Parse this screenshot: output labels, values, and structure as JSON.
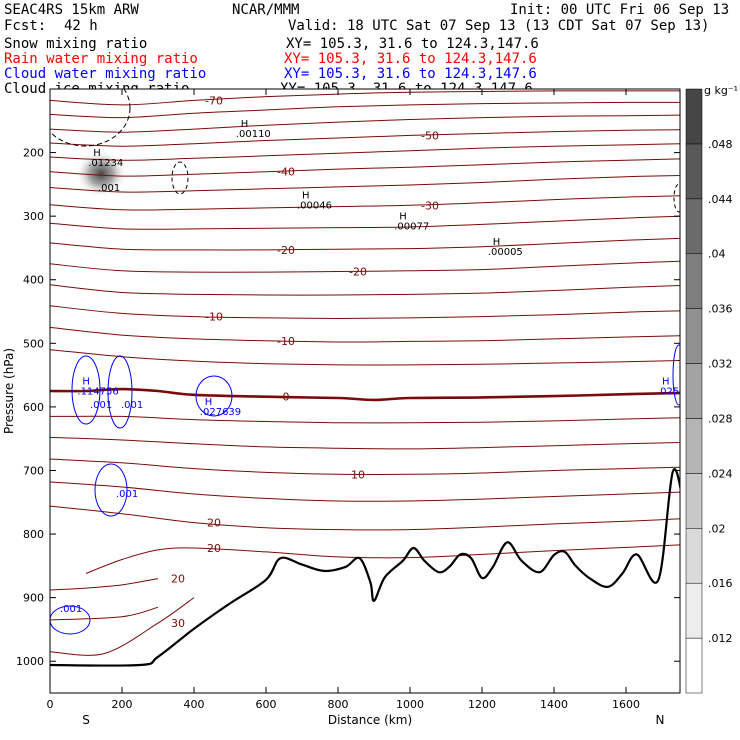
{
  "header": {
    "model": "SEAC4RS 15km ARW",
    "center": "NCAR/MMM",
    "init": "Init: 00 UTC Fri 06 Sep 13",
    "fcst_label": "Fcst:",
    "fcst_value": "42 h",
    "valid": "Valid: 18 UTC Sat 07 Sep 13 (13 CDT Sat 07 Sep 13)",
    "fields": [
      {
        "name": "Snow mixing ratio",
        "xy": "XY= 105.3, 31.6 to 124.3,147.6",
        "color": "#000000"
      },
      {
        "name": "Rain water mixing ratio",
        "xy": "XY= 105.3, 31.6 to 124.3,147.6",
        "color": "#ff0000"
      },
      {
        "name": "Cloud water mixing ratio",
        "xy": "XY= 105.3, 31.6 to 124.3,147.6",
        "color": "#0000ff"
      },
      {
        "name": "Cloud ice mixing ratio",
        "xy": "XY= 105.3, 31.6 to 124.3,147.6",
        "color": "#000000"
      }
    ]
  },
  "chart_data": {
    "type": "cross-section contour",
    "xlabel": "Distance (km)",
    "ylabel": "Pressure (hPa)",
    "x_ticks": [
      0,
      200,
      400,
      600,
      800,
      1000,
      1200,
      1400,
      1600
    ],
    "y_ticks": [
      200,
      300,
      400,
      500,
      600,
      700,
      800,
      900,
      1000
    ],
    "xlim": [
      0,
      1750
    ],
    "ylim": [
      1050,
      100
    ],
    "left_end_label": "S",
    "right_end_label": "N",
    "colorbar": {
      "unit": "g kg⁻¹",
      "tick_labels": [
        ".012",
        ".016",
        ".02",
        ".024",
        ".028",
        ".032",
        ".036",
        ".04",
        ".044",
        ".048"
      ],
      "levels": [
        0.012,
        0.016,
        0.02,
        0.024,
        0.028,
        0.032,
        0.036,
        0.04,
        0.044,
        0.048
      ],
      "shading": "grayscale, white to dark gray"
    },
    "temperature_contours": [
      {
        "label": "-70",
        "values": [
          [
            0,
            118
          ],
          [
            200,
            125
          ],
          [
            400,
            118
          ],
          [
            600,
            112
          ],
          [
            800,
            108
          ],
          [
            1000,
            105
          ],
          [
            1200,
            104
          ],
          [
            1400,
            103
          ],
          [
            1600,
            103
          ],
          [
            1750,
            103
          ]
        ]
      },
      {
        "label": "",
        "values": [
          [
            0,
            140
          ],
          [
            200,
            145
          ],
          [
            400,
            138
          ],
          [
            600,
            133
          ],
          [
            800,
            128
          ],
          [
            1000,
            125
          ],
          [
            1200,
            123
          ],
          [
            1400,
            122
          ],
          [
            1600,
            121
          ],
          [
            1750,
            121
          ]
        ]
      },
      {
        "label": "",
        "values": [
          [
            0,
            163
          ],
          [
            200,
            168
          ],
          [
            400,
            163
          ],
          [
            600,
            157
          ],
          [
            800,
            152
          ],
          [
            1000,
            148
          ],
          [
            1200,
            145
          ],
          [
            1400,
            143
          ],
          [
            1600,
            142
          ],
          [
            1750,
            141
          ]
        ]
      },
      {
        "label": "-50",
        "values": [
          [
            0,
            185
          ],
          [
            200,
            190
          ],
          [
            400,
            186
          ],
          [
            600,
            181
          ],
          [
            800,
            177
          ],
          [
            1000,
            173
          ],
          [
            1200,
            170
          ],
          [
            1400,
            167
          ],
          [
            1600,
            165
          ],
          [
            1750,
            164
          ]
        ]
      },
      {
        "label": "",
        "values": [
          [
            0,
            207
          ],
          [
            200,
            212
          ],
          [
            400,
            209
          ],
          [
            600,
            205
          ],
          [
            800,
            201
          ],
          [
            1000,
            197
          ],
          [
            1200,
            193
          ],
          [
            1400,
            190
          ],
          [
            1600,
            188
          ],
          [
            1750,
            186
          ]
        ]
      },
      {
        "label": "-40",
        "values": [
          [
            0,
            230
          ],
          [
            200,
            237
          ],
          [
            400,
            234
          ],
          [
            600,
            230
          ],
          [
            800,
            226
          ],
          [
            1000,
            223
          ],
          [
            1200,
            219
          ],
          [
            1400,
            215
          ],
          [
            1600,
            212
          ],
          [
            1750,
            210
          ]
        ]
      },
      {
        "label": "",
        "values": [
          [
            0,
            255
          ],
          [
            200,
            262
          ],
          [
            400,
            260
          ],
          [
            600,
            257
          ],
          [
            800,
            254
          ],
          [
            1000,
            251
          ],
          [
            1200,
            247
          ],
          [
            1400,
            242
          ],
          [
            1600,
            238
          ],
          [
            1750,
            236
          ]
        ]
      },
      {
        "label": "-30",
        "values": [
          [
            0,
            282
          ],
          [
            200,
            290
          ],
          [
            400,
            289
          ],
          [
            600,
            287
          ],
          [
            800,
            285
          ],
          [
            1000,
            283
          ],
          [
            1200,
            279
          ],
          [
            1400,
            274
          ],
          [
            1600,
            270
          ],
          [
            1750,
            268
          ]
        ]
      },
      {
        "label": "",
        "values": [
          [
            0,
            311
          ],
          [
            200,
            320
          ],
          [
            400,
            320
          ],
          [
            600,
            319
          ],
          [
            800,
            318
          ],
          [
            1000,
            317
          ],
          [
            1200,
            313
          ],
          [
            1400,
            308
          ],
          [
            1600,
            303
          ],
          [
            1750,
            300
          ]
        ]
      },
      {
        "label": "-20",
        "values": [
          [
            0,
            342
          ],
          [
            200,
            352
          ],
          [
            400,
            353
          ],
          [
            600,
            353
          ],
          [
            800,
            352
          ],
          [
            1000,
            351
          ],
          [
            1200,
            348
          ],
          [
            1400,
            343
          ],
          [
            1600,
            338
          ],
          [
            1750,
            335
          ]
        ]
      },
      {
        "label": "-20",
        "values": [
          [
            0,
            375
          ],
          [
            200,
            386
          ],
          [
            400,
            388
          ],
          [
            600,
            388
          ],
          [
            800,
            387
          ],
          [
            1000,
            386
          ],
          [
            1200,
            384
          ],
          [
            1400,
            379
          ],
          [
            1600,
            374
          ],
          [
            1750,
            371
          ]
        ]
      },
      {
        "label": "",
        "values": [
          [
            0,
            408
          ],
          [
            200,
            420
          ],
          [
            400,
            423
          ],
          [
            600,
            424
          ],
          [
            800,
            424
          ],
          [
            1000,
            423
          ],
          [
            1200,
            421
          ],
          [
            1400,
            417
          ],
          [
            1600,
            412
          ],
          [
            1750,
            409
          ]
        ]
      },
      {
        "label": "-10",
        "values": [
          [
            0,
            441
          ],
          [
            200,
            453
          ],
          [
            400,
            458
          ],
          [
            600,
            460
          ],
          [
            800,
            461
          ],
          [
            1000,
            460
          ],
          [
            1200,
            458
          ],
          [
            1400,
            455
          ],
          [
            1600,
            451
          ],
          [
            1750,
            449
          ]
        ]
      },
      {
        "label": "-10",
        "values": [
          [
            0,
            475
          ],
          [
            200,
            487
          ],
          [
            400,
            493
          ],
          [
            600,
            496
          ],
          [
            800,
            498
          ],
          [
            1000,
            497
          ],
          [
            1200,
            496
          ],
          [
            1400,
            493
          ],
          [
            1600,
            490
          ],
          [
            1750,
            488
          ]
        ]
      },
      {
        "label": "",
        "values": [
          [
            0,
            510
          ],
          [
            200,
            521
          ],
          [
            400,
            528
          ],
          [
            600,
            532
          ],
          [
            800,
            534
          ],
          [
            1000,
            534
          ],
          [
            1200,
            533
          ],
          [
            1400,
            531
          ],
          [
            1600,
            529
          ],
          [
            1750,
            527
          ]
        ]
      },
      {
        "label": "0",
        "values": [
          [
            0,
            575
          ],
          [
            100,
            575
          ],
          [
            200,
            572
          ],
          [
            300,
            575
          ],
          [
            400,
            581
          ],
          [
            600,
            584
          ],
          [
            800,
            586
          ],
          [
            900,
            589
          ],
          [
            1000,
            586
          ],
          [
            1200,
            585
          ],
          [
            1400,
            583
          ],
          [
            1600,
            580
          ],
          [
            1750,
            578
          ]
        ]
      },
      {
        "label": "",
        "values": [
          [
            0,
            615
          ],
          [
            200,
            615
          ],
          [
            400,
            620
          ],
          [
            600,
            623
          ],
          [
            800,
            625
          ],
          [
            1000,
            625
          ],
          [
            1200,
            624
          ],
          [
            1400,
            622
          ],
          [
            1600,
            619
          ],
          [
            1750,
            617
          ]
        ]
      },
      {
        "label": "",
        "values": [
          [
            0,
            648
          ],
          [
            200,
            652
          ],
          [
            400,
            658
          ],
          [
            600,
            663
          ],
          [
            800,
            665
          ],
          [
            1000,
            666
          ],
          [
            1200,
            664
          ],
          [
            1400,
            661
          ],
          [
            1600,
            658
          ],
          [
            1750,
            656
          ]
        ]
      },
      {
        "label": "10",
        "values": [
          [
            0,
            682
          ],
          [
            200,
            688
          ],
          [
            400,
            697
          ],
          [
            600,
            703
          ],
          [
            800,
            706
          ],
          [
            1000,
            706
          ],
          [
            1200,
            704
          ],
          [
            1400,
            700
          ],
          [
            1600,
            697
          ],
          [
            1750,
            695
          ]
        ]
      },
      {
        "label": "",
        "values": [
          [
            0,
            718
          ],
          [
            200,
            726
          ],
          [
            400,
            737
          ],
          [
            600,
            744
          ],
          [
            800,
            748
          ],
          [
            1000,
            748
          ],
          [
            1200,
            745
          ],
          [
            1400,
            741
          ],
          [
            1600,
            737
          ],
          [
            1750,
            734
          ]
        ]
      },
      {
        "label": "20",
        "values": [
          [
            0,
            756
          ],
          [
            200,
            768
          ],
          [
            400,
            782
          ],
          [
            600,
            790
          ],
          [
            800,
            793
          ],
          [
            1000,
            793
          ],
          [
            1200,
            789
          ],
          [
            1400,
            784
          ],
          [
            1600,
            780
          ],
          [
            1750,
            776
          ]
        ]
      },
      {
        "label": "20",
        "values": [
          [
            100,
            862
          ],
          [
            200,
            840
          ],
          [
            300,
            825
          ],
          [
            400,
            822
          ],
          [
            600,
            828
          ],
          [
            800,
            836
          ],
          [
            1000,
            837
          ],
          [
            1200,
            832
          ],
          [
            1400,
            826
          ],
          [
            1600,
            821
          ],
          [
            1750,
            817
          ]
        ]
      },
      {
        "label": "20",
        "values": [
          [
            0,
            888
          ],
          [
            100,
            885
          ],
          [
            200,
            880
          ],
          [
            300,
            870
          ]
        ]
      },
      {
        "label": "",
        "values": [
          [
            0,
            935
          ],
          [
            200,
            930
          ],
          [
            300,
            915
          ]
        ]
      },
      {
        "label": "30",
        "values": [
          [
            0,
            985
          ],
          [
            150,
            988
          ],
          [
            300,
            940
          ],
          [
            400,
            900
          ]
        ]
      }
    ],
    "terrain_surface": [
      [
        0,
        1006
      ],
      [
        250,
        1006
      ],
      [
        300,
        993
      ],
      [
        400,
        949
      ],
      [
        500,
        909
      ],
      [
        600,
        872
      ],
      [
        640,
        838
      ],
      [
        700,
        848
      ],
      [
        760,
        858
      ],
      [
        820,
        852
      ],
      [
        860,
        838
      ],
      [
        890,
        876
      ],
      [
        900,
        905
      ],
      [
        930,
        868
      ],
      [
        980,
        842
      ],
      [
        1010,
        822
      ],
      [
        1040,
        842
      ],
      [
        1080,
        860
      ],
      [
        1110,
        851
      ],
      [
        1140,
        832
      ],
      [
        1170,
        838
      ],
      [
        1200,
        869
      ],
      [
        1230,
        852
      ],
      [
        1270,
        813
      ],
      [
        1310,
        842
      ],
      [
        1360,
        860
      ],
      [
        1400,
        833
      ],
      [
        1430,
        828
      ],
      [
        1460,
        850
      ],
      [
        1500,
        870
      ],
      [
        1550,
        883
      ],
      [
        1590,
        862
      ],
      [
        1630,
        832
      ],
      [
        1690,
        872
      ],
      [
        1730,
        702
      ],
      [
        1760,
        753
      ]
    ],
    "snow_max": {
      "label": "H",
      "value": ".01234",
      "x": 120,
      "p": 205
    },
    "snow_contour_label": ".001",
    "cloud_ice_maxima": [
      {
        "label": "H",
        "value": ".00110",
        "x": 530,
        "p": 160
      },
      {
        "label": "H",
        "value": ".00046",
        "x": 700,
        "p": 272
      },
      {
        "label": "H",
        "value": ".00077",
        "x": 970,
        "p": 305
      },
      {
        "label": "H",
        "value": ".00005",
        "x": 1230,
        "p": 345
      }
    ],
    "cloud_water_maxima": [
      {
        "label": "H",
        "value": ".114756",
        "x": 90,
        "p": 565
      },
      {
        "label": "H",
        "value": ".027639",
        "x": 430,
        "p": 597
      },
      {
        "label": "H",
        "value": ".025",
        "x": 1700,
        "p": 565
      }
    ],
    "cloud_water_contour_labels": [
      ".001",
      ".001",
      ".001",
      ".001"
    ]
  }
}
